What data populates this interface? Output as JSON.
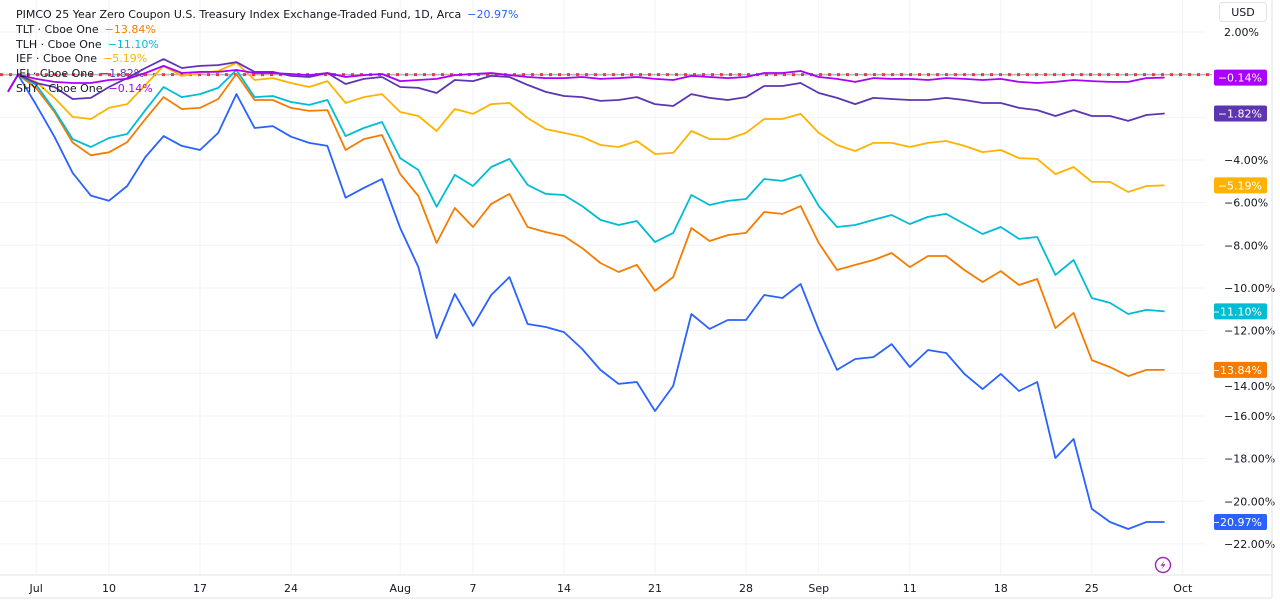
{
  "header": {
    "main_title": "PIMCO 25 Year Zero Coupon U.S. Treasury Index Exchange-Traded Fund, 1D, Arca",
    "main_change": "−20.97%",
    "currency_button": "USD"
  },
  "legend": [
    {
      "label": "TLT · Cboe One",
      "value": "−13.84%",
      "color": "#f57c00"
    },
    {
      "label": "TLH · Cboe One",
      "value": "−11.10%",
      "color": "#00bcd4"
    },
    {
      "label": "IEF · Cboe One",
      "value": "−5.19%",
      "color": "#ffb300"
    },
    {
      "label": "IEI · Cboe One",
      "value": "−1.82%",
      "color": "#5e35b1"
    },
    {
      "label": "SHY · Cboe One",
      "value": "−0.14%",
      "color": "#aa00ff"
    }
  ],
  "icons": {
    "lightning": "lightning-icon"
  },
  "chart_data": {
    "type": "line",
    "ylim": [
      -23,
      2.5
    ],
    "yticks": [
      2,
      0,
      -2,
      -4,
      -6,
      -8,
      -10,
      -12,
      -14,
      -16,
      -18,
      -20,
      -22
    ],
    "ytick_labels": [
      "2.00%",
      "",
      "",
      "−4.00%",
      "−6.00%",
      "−8.00%",
      "−10.00%",
      "−12.00%",
      "−14.00%",
      "−16.00%",
      "−18.00%",
      "−20.00%",
      "−22.00%"
    ],
    "xtick_labels": [
      {
        "label": "Jul",
        "date": "2023-07-03"
      },
      {
        "label": "10",
        "date": "2023-07-10"
      },
      {
        "label": "17",
        "date": "2023-07-17"
      },
      {
        "label": "24",
        "date": "2023-07-24"
      },
      {
        "label": "Aug",
        "date": "2023-08-01"
      },
      {
        "label": "7",
        "date": "2023-08-07"
      },
      {
        "label": "14",
        "date": "2023-08-14"
      },
      {
        "label": "21",
        "date": "2023-08-21"
      },
      {
        "label": "28",
        "date": "2023-08-28"
      },
      {
        "label": "Sep",
        "date": "2023-09-01"
      },
      {
        "label": "11",
        "date": "2023-09-11"
      },
      {
        "label": "18",
        "date": "2023-09-18"
      },
      {
        "label": "25",
        "date": "2023-09-25"
      },
      {
        "label": "Oct",
        "date": "2023-10-02"
      }
    ],
    "grid": true,
    "baseline": {
      "value": 0,
      "color": "#f23645",
      "style": "dotted"
    },
    "dates": [
      "2023-06-30",
      "2023-07-03",
      "2023-07-05",
      "2023-07-06",
      "2023-07-07",
      "2023-07-10",
      "2023-07-11",
      "2023-07-12",
      "2023-07-13",
      "2023-07-14",
      "2023-07-17",
      "2023-07-18",
      "2023-07-19",
      "2023-07-20",
      "2023-07-21",
      "2023-07-24",
      "2023-07-25",
      "2023-07-26",
      "2023-07-27",
      "2023-07-28",
      "2023-07-31",
      "2023-08-01",
      "2023-08-02",
      "2023-08-03",
      "2023-08-04",
      "2023-08-07",
      "2023-08-08",
      "2023-08-09",
      "2023-08-10",
      "2023-08-11",
      "2023-08-14",
      "2023-08-15",
      "2023-08-16",
      "2023-08-17",
      "2023-08-18",
      "2023-08-21",
      "2023-08-22",
      "2023-08-23",
      "2023-08-24",
      "2023-08-25",
      "2023-08-28",
      "2023-08-29",
      "2023-08-30",
      "2023-08-31",
      "2023-09-01",
      "2023-09-05",
      "2023-09-06",
      "2023-09-07",
      "2023-09-08",
      "2023-09-11",
      "2023-09-12",
      "2023-09-13",
      "2023-09-14",
      "2023-09-15",
      "2023-09-18",
      "2023-09-19",
      "2023-09-20",
      "2023-09-21",
      "2023-09-22",
      "2023-09-25",
      "2023-09-26",
      "2023-09-27",
      "2023-09-28",
      "2023-09-29"
    ],
    "series": [
      {
        "name": "PIMCO 25 Year Zero Coupon U.S. Treasury Index Exchange-Traded Fund",
        "color": "#2962ff",
        "last_label": "−20.97%",
        "values": [
          0,
          -1.42,
          -2.91,
          -4.6,
          -5.67,
          -5.91,
          -5.22,
          -3.86,
          -2.88,
          -3.34,
          -3.53,
          -2.73,
          -0.91,
          -2.5,
          -2.41,
          -2.91,
          -3.2,
          -3.34,
          -5.77,
          -5.31,
          -4.89,
          -7.19,
          -9.02,
          -12.35,
          -10.28,
          -11.78,
          -10.33,
          -9.49,
          -11.69,
          -11.83,
          -12.07,
          -12.86,
          -13.84,
          -14.5,
          -14.41,
          -15.77,
          -14.59,
          -11.22,
          -11.92,
          -11.5,
          -11.5,
          -10.33,
          -10.47,
          -9.81,
          -11.97,
          -13.84,
          -13.33,
          -13.24,
          -12.63,
          -13.71,
          -12.91,
          -13.05,
          -14.03,
          -14.74,
          -14.03,
          -14.83,
          -14.41,
          -17.97,
          -17.08,
          -20.36,
          -20.97,
          -21.3,
          -20.97,
          -20.97
        ]
      },
      {
        "name": "TLT",
        "color": "#f57c00",
        "last_label": "−13.84%",
        "values": [
          0,
          -0.63,
          -1.74,
          -3.18,
          -3.78,
          -3.64,
          -3.16,
          -2.08,
          -1.05,
          -1.61,
          -1.56,
          -1.14,
          0.03,
          -1.19,
          -1.19,
          -1.56,
          -1.7,
          -1.66,
          -3.53,
          -3.02,
          -2.83,
          -4.66,
          -5.69,
          -7.89,
          -6.25,
          -7.14,
          -6.06,
          -5.59,
          -7.14,
          -7.38,
          -7.57,
          -8.13,
          -8.83,
          -9.25,
          -8.92,
          -10.14,
          -9.49,
          -7.19,
          -7.8,
          -7.52,
          -7.42,
          -6.44,
          -6.53,
          -6.16,
          -7.89,
          -9.16,
          -8.92,
          -8.69,
          -8.36,
          -9.02,
          -8.5,
          -8.5,
          -9.16,
          -9.72,
          -9.21,
          -9.86,
          -9.58,
          -11.88,
          -11.17,
          -13.38,
          -13.71,
          -14.13,
          -13.84,
          -13.84
        ]
      },
      {
        "name": "TLH",
        "color": "#00bcd4",
        "last_label": "−11.10%",
        "values": [
          0,
          -0.48,
          -1.66,
          -3.02,
          -3.39,
          -2.97,
          -2.78,
          -1.66,
          -0.58,
          -1.05,
          -0.91,
          -0.62,
          0.22,
          -1.05,
          -1.0,
          -1.28,
          -1.42,
          -1.19,
          -2.88,
          -2.5,
          -2.22,
          -3.91,
          -4.47,
          -6.19,
          -4.7,
          -5.22,
          -4.33,
          -3.95,
          -5.17,
          -5.59,
          -5.64,
          -6.16,
          -6.81,
          -7.05,
          -6.86,
          -7.85,
          -7.42,
          -5.64,
          -6.11,
          -5.92,
          -5.83,
          -4.89,
          -4.98,
          -4.7,
          -6.16,
          -7.14,
          -7.05,
          -6.81,
          -6.58,
          -7.0,
          -6.67,
          -6.53,
          -7.0,
          -7.47,
          -7.14,
          -7.7,
          -7.61,
          -9.39,
          -8.69,
          -10.47,
          -10.7,
          -11.22,
          -11.03,
          -11.1
        ]
      },
      {
        "name": "IEF",
        "color": "#ffb300",
        "last_label": "−5.19%",
        "values": [
          0,
          -0.34,
          -1.09,
          -1.98,
          -2.08,
          -1.56,
          -1.38,
          -0.48,
          0.41,
          -0.06,
          0.08,
          0.17,
          0.55,
          -0.25,
          -0.16,
          -0.39,
          -0.58,
          -0.3,
          -1.33,
          -1.05,
          -0.91,
          -1.75,
          -1.94,
          -2.64,
          -1.61,
          -1.84,
          -1.38,
          -1.33,
          -2.03,
          -2.55,
          -2.73,
          -2.92,
          -3.3,
          -3.39,
          -3.11,
          -3.72,
          -3.67,
          -2.64,
          -3.02,
          -3.02,
          -2.73,
          -2.08,
          -2.08,
          -1.84,
          -2.73,
          -3.3,
          -3.58,
          -3.2,
          -3.2,
          -3.39,
          -3.2,
          -3.11,
          -3.34,
          -3.63,
          -3.53,
          -3.91,
          -3.95,
          -4.66,
          -4.33,
          -5.03,
          -5.03,
          -5.5,
          -5.22,
          -5.19
        ]
      },
      {
        "name": "IEI",
        "color": "#5e35b1",
        "last_label": "−1.82%",
        "values": [
          0,
          -0.39,
          -0.58,
          -1.14,
          -1.09,
          -0.58,
          -0.16,
          0.31,
          0.73,
          0.31,
          0.41,
          0.45,
          0.59,
          0.13,
          0.13,
          -0.06,
          -0.11,
          0.08,
          -0.44,
          -0.2,
          -0.11,
          -0.58,
          -0.62,
          -0.86,
          -0.25,
          -0.3,
          -0.06,
          -0.11,
          -0.48,
          -0.81,
          -1.0,
          -1.05,
          -1.23,
          -1.19,
          -1.05,
          -1.38,
          -1.47,
          -0.91,
          -1.09,
          -1.19,
          -1.05,
          -0.53,
          -0.53,
          -0.39,
          -0.86,
          -1.09,
          -1.38,
          -1.09,
          -1.14,
          -1.19,
          -1.19,
          -1.09,
          -1.19,
          -1.33,
          -1.33,
          -1.56,
          -1.66,
          -1.94,
          -1.66,
          -1.94,
          -1.94,
          -2.17,
          -1.89,
          -1.82
        ]
      },
      {
        "name": "SHY",
        "color": "#aa00ff",
        "last_label": "−0.14%",
        "values": [
          0,
          -0.2,
          -0.34,
          -0.39,
          -0.39,
          -0.25,
          -0.2,
          0.08,
          0.41,
          0.08,
          0.13,
          0.13,
          0.22,
          0.08,
          0.08,
          0.03,
          -0.02,
          0.08,
          -0.11,
          -0.02,
          0.03,
          -0.3,
          -0.25,
          -0.2,
          -0.02,
          0.03,
          0.08,
          -0.02,
          -0.11,
          -0.16,
          -0.16,
          -0.11,
          -0.2,
          -0.16,
          -0.11,
          -0.2,
          -0.25,
          -0.06,
          -0.11,
          -0.16,
          -0.11,
          0.08,
          0.08,
          0.17,
          -0.11,
          -0.2,
          -0.34,
          -0.16,
          -0.2,
          -0.2,
          -0.25,
          -0.16,
          -0.2,
          -0.25,
          -0.2,
          -0.34,
          -0.39,
          -0.34,
          -0.25,
          -0.3,
          -0.34,
          -0.34,
          -0.16,
          -0.14
        ]
      }
    ]
  }
}
